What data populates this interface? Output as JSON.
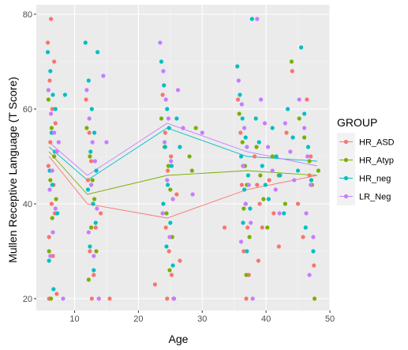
{
  "chart_data": {
    "type": "scatter",
    "xlabel": "Age",
    "ylabel": "Mullen Receptive Language (T Score)",
    "xlim": [
      4,
      50
    ],
    "ylim": [
      17.5,
      82
    ],
    "x_ticks": [
      10,
      20,
      30,
      40,
      50
    ],
    "y_ticks": [
      20,
      40,
      60,
      80
    ],
    "grid": true,
    "legend": {
      "title": "GROUP",
      "placement": "right",
      "entries": [
        {
          "name": "HR_ASD",
          "color": "#F8766D"
        },
        {
          "name": "HR_Atyp",
          "color": "#7CAE00"
        },
        {
          "name": "HR_neg",
          "color": "#00BFC4"
        },
        {
          "name": "LR_Neg",
          "color": "#C77CFF"
        }
      ]
    },
    "series": [
      {
        "name": "HR_ASD",
        "color": "#F8766D",
        "line": [
          [
            6,
            50
          ],
          [
            12,
            40
          ],
          [
            24.5,
            37
          ],
          [
            37,
            43
          ],
          [
            48,
            46
          ]
        ],
        "points": [
          [
            5.8,
            74
          ],
          [
            6.3,
            79
          ],
          [
            6.8,
            70
          ],
          [
            6.1,
            66
          ],
          [
            6.5,
            60
          ],
          [
            7.0,
            57
          ],
          [
            6.2,
            53
          ],
          [
            5.9,
            48
          ],
          [
            6.7,
            44
          ],
          [
            6.4,
            40
          ],
          [
            6.9,
            38
          ],
          [
            6.0,
            33
          ],
          [
            6.6,
            29
          ],
          [
            7.2,
            21
          ],
          [
            6.0,
            20
          ],
          [
            11.8,
            62
          ],
          [
            12.3,
            55
          ],
          [
            12.6,
            49
          ],
          [
            12.1,
            45
          ],
          [
            12.9,
            40
          ],
          [
            13.3,
            35
          ],
          [
            12.4,
            30
          ],
          [
            13.0,
            25
          ],
          [
            12.7,
            20
          ],
          [
            13.8,
            20
          ],
          [
            14.1,
            38
          ],
          [
            15.5,
            20
          ],
          [
            22.6,
            23
          ],
          [
            23.8,
            63
          ],
          [
            24.2,
            55
          ],
          [
            24.6,
            47
          ],
          [
            23.9,
            40
          ],
          [
            24.3,
            35
          ],
          [
            24.8,
            30
          ],
          [
            25.2,
            25
          ],
          [
            24.5,
            20
          ],
          [
            25.5,
            20
          ],
          [
            26.0,
            42
          ],
          [
            26.5,
            28
          ],
          [
            25.1,
            50
          ],
          [
            33.5,
            35
          ],
          [
            35.6,
            62
          ],
          [
            36.0,
            55
          ],
          [
            36.4,
            48
          ],
          [
            36.2,
            44
          ],
          [
            36.8,
            40
          ],
          [
            37.1,
            35
          ],
          [
            36.5,
            30
          ],
          [
            37.3,
            25
          ],
          [
            36.9,
            20
          ],
          [
            38.2,
            50
          ],
          [
            38.6,
            44
          ],
          [
            39.0,
            40
          ],
          [
            39.4,
            35
          ],
          [
            38.8,
            28
          ],
          [
            40.5,
            45
          ],
          [
            41.2,
            38
          ],
          [
            42.0,
            31
          ],
          [
            43.2,
            55
          ],
          [
            44.1,
            68
          ],
          [
            45.0,
            40
          ],
          [
            45.8,
            33
          ],
          [
            46.4,
            62
          ],
          [
            47.0,
            50
          ],
          [
            46.8,
            46
          ],
          [
            47.5,
            27
          ]
        ]
      },
      {
        "name": "HR_Atyp",
        "color": "#7CAE00",
        "line": [
          [
            6,
            51
          ],
          [
            12,
            42
          ],
          [
            24.5,
            46
          ],
          [
            37,
            47
          ],
          [
            48,
            46
          ]
        ],
        "points": [
          [
            5.9,
            62
          ],
          [
            6.4,
            56
          ],
          [
            6.8,
            50
          ],
          [
            6.2,
            45
          ],
          [
            7.1,
            41
          ],
          [
            6.5,
            37
          ],
          [
            6.0,
            30
          ],
          [
            6.3,
            20
          ],
          [
            11.9,
            56
          ],
          [
            12.4,
            50
          ],
          [
            12.8,
            45
          ],
          [
            13.1,
            41
          ],
          [
            12.6,
            35
          ],
          [
            13.4,
            30
          ],
          [
            12.2,
            24
          ],
          [
            23.6,
            58
          ],
          [
            24.1,
            52
          ],
          [
            24.7,
            48
          ],
          [
            25.0,
            43
          ],
          [
            24.4,
            38
          ],
          [
            25.3,
            33
          ],
          [
            24.9,
            26
          ],
          [
            28.0,
            50
          ],
          [
            28.4,
            47
          ],
          [
            29.0,
            56
          ],
          [
            35.8,
            59
          ],
          [
            36.3,
            53
          ],
          [
            36.7,
            48
          ],
          [
            37.0,
            44
          ],
          [
            36.5,
            39
          ],
          [
            37.4,
            33
          ],
          [
            36.9,
            25
          ],
          [
            38.5,
            52
          ],
          [
            39.1,
            46
          ],
          [
            39.6,
            41
          ],
          [
            40.2,
            35
          ],
          [
            41.0,
            50
          ],
          [
            42.0,
            46
          ],
          [
            43.0,
            40
          ],
          [
            44.0,
            70
          ],
          [
            45.2,
            58
          ],
          [
            46.0,
            54
          ],
          [
            46.8,
            49
          ],
          [
            47.2,
            44
          ],
          [
            47.6,
            20
          ],
          [
            48.2,
            47
          ]
        ]
      },
      {
        "name": "HR_neg",
        "color": "#00BFC4",
        "line": [
          [
            6,
            52
          ],
          [
            12,
            45
          ],
          [
            24.5,
            56
          ],
          [
            37,
            50
          ],
          [
            48,
            49
          ]
        ],
        "points": [
          [
            5.8,
            72
          ],
          [
            6.2,
            68
          ],
          [
            6.6,
            63
          ],
          [
            7.0,
            60
          ],
          [
            6.4,
            55
          ],
          [
            6.9,
            51
          ],
          [
            6.1,
            47
          ],
          [
            6.5,
            44
          ],
          [
            7.3,
            38
          ],
          [
            6.0,
            28
          ],
          [
            6.7,
            22
          ],
          [
            8.5,
            63
          ],
          [
            11.7,
            74
          ],
          [
            12.2,
            66
          ],
          [
            12.7,
            60
          ],
          [
            13.1,
            55
          ],
          [
            12.5,
            51
          ],
          [
            13.4,
            47
          ],
          [
            12.1,
            43
          ],
          [
            12.9,
            40
          ],
          [
            13.3,
            36
          ],
          [
            12.4,
            31
          ],
          [
            13.0,
            26
          ],
          [
            13.6,
            72
          ],
          [
            23.6,
            70
          ],
          [
            24.0,
            65
          ],
          [
            24.5,
            60
          ],
          [
            24.8,
            56
          ],
          [
            24.2,
            52
          ],
          [
            25.2,
            48
          ],
          [
            24.6,
            44
          ],
          [
            23.9,
            40
          ],
          [
            25.0,
            36
          ],
          [
            24.4,
            31
          ],
          [
            25.4,
            27
          ],
          [
            26.0,
            58
          ],
          [
            26.5,
            52
          ],
          [
            35.5,
            69
          ],
          [
            35.9,
            63
          ],
          [
            36.3,
            58
          ],
          [
            36.8,
            54
          ],
          [
            36.1,
            50
          ],
          [
            37.2,
            46
          ],
          [
            36.6,
            43
          ],
          [
            37.5,
            39
          ],
          [
            36.4,
            36
          ],
          [
            37.0,
            30
          ],
          [
            37.8,
            79
          ],
          [
            38.4,
            58
          ],
          [
            38.9,
            53
          ],
          [
            39.4,
            48
          ],
          [
            39.9,
            44
          ],
          [
            40.4,
            41
          ],
          [
            41.0,
            56
          ],
          [
            41.6,
            50
          ],
          [
            42.2,
            46
          ],
          [
            42.8,
            38
          ],
          [
            43.4,
            60
          ],
          [
            44.2,
            54
          ],
          [
            45.0,
            47
          ],
          [
            45.5,
            73
          ],
          [
            46.0,
            59
          ],
          [
            46.6,
            52
          ],
          [
            47.1,
            45
          ],
          [
            47.4,
            30
          ],
          [
            46.2,
            35
          ]
        ]
      },
      {
        "name": "LR_Neg",
        "color": "#C77CFF",
        "line": [
          [
            6,
            53
          ],
          [
            12,
            46
          ],
          [
            24.5,
            57
          ],
          [
            37,
            51
          ],
          [
            48,
            48
          ]
        ],
        "points": [
          [
            5.9,
            64
          ],
          [
            6.3,
            59
          ],
          [
            6.8,
            55
          ],
          [
            7.2,
            51
          ],
          [
            6.5,
            47
          ],
          [
            6.1,
            43
          ],
          [
            7.0,
            39
          ],
          [
            6.6,
            34
          ],
          [
            6.2,
            29
          ],
          [
            8.2,
            20
          ],
          [
            7.5,
            53
          ],
          [
            11.9,
            64
          ],
          [
            12.3,
            58
          ],
          [
            12.8,
            53
          ],
          [
            13.2,
            49
          ],
          [
            12.6,
            44
          ],
          [
            13.5,
            39
          ],
          [
            12.2,
            34
          ],
          [
            13.0,
            29
          ],
          [
            13.8,
            20
          ],
          [
            14.5,
            67
          ],
          [
            15.0,
            53
          ],
          [
            23.4,
            74
          ],
          [
            23.9,
            68
          ],
          [
            24.3,
            62
          ],
          [
            24.7,
            58
          ],
          [
            24.1,
            53
          ],
          [
            25.1,
            49
          ],
          [
            24.5,
            45
          ],
          [
            25.4,
            41
          ],
          [
            23.8,
            38
          ],
          [
            24.9,
            33
          ],
          [
            25.6,
            20
          ],
          [
            26.2,
            64
          ],
          [
            27.0,
            56
          ],
          [
            28.5,
            42
          ],
          [
            30.0,
            55
          ],
          [
            35.7,
            66
          ],
          [
            36.2,
            61
          ],
          [
            36.6,
            56
          ],
          [
            37.0,
            52
          ],
          [
            36.4,
            48
          ],
          [
            37.3,
            44
          ],
          [
            36.8,
            40
          ],
          [
            37.6,
            36
          ],
          [
            36.1,
            32
          ],
          [
            37.9,
            20
          ],
          [
            38.6,
            79
          ],
          [
            39.2,
            62
          ],
          [
            39.8,
            57
          ],
          [
            40.3,
            52
          ],
          [
            41.0,
            47
          ],
          [
            41.5,
            43
          ],
          [
            42.1,
            38
          ],
          [
            43.0,
            57
          ],
          [
            43.8,
            51
          ],
          [
            44.4,
            45
          ],
          [
            45.2,
            62
          ],
          [
            46.0,
            56
          ],
          [
            46.5,
            50
          ],
          [
            47.0,
            44
          ],
          [
            46.3,
            38
          ],
          [
            47.4,
            33
          ],
          [
            46.8,
            25
          ]
        ]
      }
    ]
  }
}
